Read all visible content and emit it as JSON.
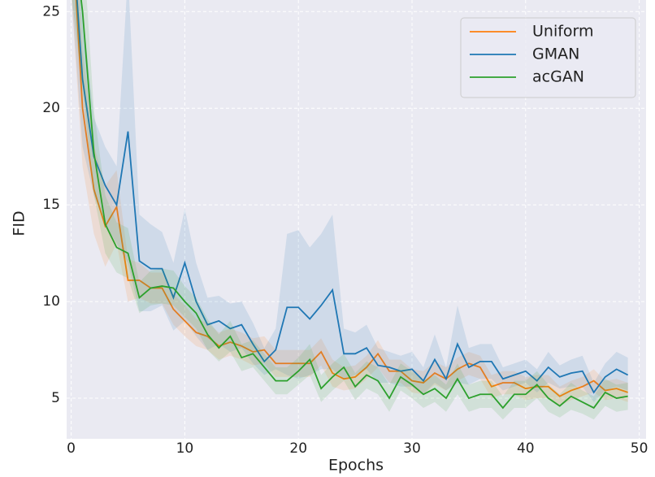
{
  "chart_data": {
    "type": "line",
    "x_label": "Epochs",
    "y_label": "FID",
    "x": [
      0,
      1,
      2,
      3,
      4,
      5,
      6,
      7,
      8,
      9,
      10,
      11,
      12,
      13,
      14,
      15,
      16,
      17,
      18,
      19,
      20,
      21,
      22,
      23,
      24,
      25,
      26,
      27,
      28,
      29,
      30,
      31,
      32,
      33,
      34,
      35,
      36,
      37,
      38,
      39,
      40,
      41,
      42,
      43,
      44,
      45,
      46,
      47,
      48,
      49
    ],
    "xlim": [
      -0.4,
      50.6
    ],
    "xticks": [
      0,
      10,
      20,
      30,
      40,
      50
    ],
    "ylim": [
      2.9,
      25.6
    ],
    "yticks": [
      5,
      10,
      15,
      20,
      25
    ],
    "grid": true,
    "legend": "upper right",
    "series": [
      {
        "name": "Uniform",
        "color": "#ff7f0e",
        "values": [
          30,
          20,
          15.8,
          13.9,
          14.9,
          11.1,
          11.1,
          10.7,
          10.7,
          9.6,
          9.0,
          8.4,
          8.2,
          7.7,
          7.9,
          7.7,
          7.4,
          7.5,
          6.8,
          6.8,
          6.8,
          6.8,
          7.4,
          6.3,
          6.0,
          6.1,
          6.6,
          7.3,
          6.4,
          6.4,
          5.9,
          5.8,
          6.3,
          6.0,
          6.5,
          6.8,
          6.6,
          5.6,
          5.8,
          5.8,
          5.5,
          5.6,
          5.6,
          5.1,
          5.4,
          5.6,
          5.9,
          5.4,
          5.5,
          5.3
        ],
        "lower": [
          26,
          17,
          13.5,
          11.8,
          13,
          10,
          10.2,
          9.9,
          9.9,
          8.8,
          8.2,
          7.7,
          7.5,
          7.0,
          7.2,
          7.0,
          6.7,
          6.8,
          6.1,
          6.1,
          6.1,
          6.1,
          6.7,
          5.6,
          5.4,
          5.5,
          6.0,
          6.6,
          5.8,
          5.8,
          5.3,
          5.2,
          5.7,
          5.4,
          5.9,
          6.2,
          6.0,
          5.0,
          5.2,
          5.2,
          4.9,
          5.0,
          5.0,
          4.6,
          4.9,
          5.1,
          5.3,
          4.9,
          5.0,
          4.8
        ],
        "upper": [
          34,
          23,
          18.1,
          16,
          16.8,
          12.2,
          12,
          11.5,
          11.5,
          10.4,
          9.8,
          9.1,
          8.9,
          8.4,
          8.6,
          8.4,
          8.1,
          8.2,
          7.5,
          7.5,
          7.5,
          7.5,
          8.1,
          7.0,
          6.6,
          6.7,
          7.2,
          8.0,
          7.0,
          7.0,
          6.5,
          6.4,
          6.9,
          6.6,
          7.1,
          7.4,
          7.2,
          6.2,
          6.4,
          6.4,
          6.1,
          6.2,
          6.2,
          5.6,
          5.9,
          6.1,
          6.5,
          5.9,
          6.0,
          5.8
        ]
      },
      {
        "name": "GMAN",
        "color": "#1f77b4",
        "values": [
          30,
          21.5,
          17.5,
          16,
          15,
          18.8,
          12.1,
          11.7,
          11.7,
          10.2,
          12.0,
          10.0,
          8.8,
          9.0,
          8.6,
          8.8,
          7.8,
          6.9,
          7.5,
          9.7,
          9.7,
          9.1,
          9.8,
          10.6,
          7.3,
          7.3,
          7.6,
          6.7,
          6.6,
          6.4,
          6.5,
          5.9,
          7.0,
          6.0,
          7.8,
          6.6,
          6.9,
          6.9,
          6.0,
          6.2,
          6.4,
          5.9,
          6.6,
          6.1,
          6.3,
          6.4,
          5.3,
          6.1,
          6.5,
          6.2
        ],
        "lower": [
          26,
          18,
          15.5,
          14,
          13,
          12,
          9.5,
          9.5,
          9.8,
          8.5,
          9,
          8.2,
          7.5,
          7.8,
          7.4,
          7.6,
          6.8,
          6.2,
          6.5,
          6.2,
          6.0,
          6.2,
          6.5,
          6.5,
          6.0,
          6.2,
          6.5,
          5.8,
          5.8,
          5.6,
          5.6,
          5.2,
          5.8,
          5.4,
          5.8,
          5.7,
          6.0,
          6.0,
          5.4,
          5.6,
          5.8,
          5.3,
          5.8,
          5.5,
          5.6,
          5.6,
          4.8,
          5.4,
          5.6,
          5.4
        ],
        "upper": [
          34,
          25,
          19.5,
          18,
          17,
          27,
          14.5,
          14,
          13.6,
          12,
          14.8,
          12,
          10.2,
          10.3,
          9.9,
          10,
          8.9,
          7.6,
          8.6,
          13.5,
          13.7,
          12.8,
          13.5,
          14.5,
          8.6,
          8.4,
          8.8,
          7.6,
          7.4,
          7.2,
          7.4,
          6.6,
          8.3,
          6.6,
          9.8,
          7.6,
          7.8,
          7.8,
          6.6,
          6.8,
          7.0,
          6.5,
          7.4,
          6.7,
          7.0,
          7.2,
          5.8,
          6.8,
          7.4,
          7.1
        ]
      },
      {
        "name": "acGAN",
        "color": "#2ca02c",
        "values": [
          30,
          25,
          17.7,
          14.0,
          12.8,
          12.5,
          10.2,
          10.7,
          10.8,
          10.7,
          10.0,
          9.4,
          8.3,
          7.6,
          8.2,
          7.1,
          7.3,
          6.6,
          5.9,
          5.9,
          6.4,
          7.0,
          5.5,
          6.1,
          6.6,
          5.6,
          6.2,
          5.9,
          5.0,
          6.1,
          5.7,
          5.2,
          5.5,
          5.0,
          6.0,
          5.0,
          5.2,
          5.2,
          4.5,
          5.2,
          5.2,
          5.7,
          5.0,
          4.6,
          5.1,
          4.8,
          4.5,
          5.3,
          5.0,
          5.1
        ],
        "lower": [
          26,
          21,
          15.5,
          12.5,
          11.5,
          11.2,
          9.4,
          9.8,
          9.9,
          9.8,
          9.2,
          8.6,
          7.5,
          6.9,
          7.4,
          6.4,
          6.6,
          5.9,
          5.2,
          5.2,
          5.7,
          6.2,
          4.8,
          5.4,
          5.9,
          4.9,
          5.5,
          5.2,
          4.3,
          5.4,
          5.0,
          4.5,
          4.8,
          4.3,
          5.2,
          4.3,
          4.5,
          4.5,
          3.9,
          4.5,
          4.5,
          5.0,
          4.3,
          4.0,
          4.4,
          4.2,
          3.9,
          4.6,
          4.3,
          4.4
        ],
        "upper": [
          34,
          29,
          19.9,
          15.5,
          14.1,
          13.8,
          11,
          11.6,
          11.7,
          11.6,
          10.8,
          10.2,
          9.1,
          8.3,
          9.0,
          7.8,
          8.0,
          7.3,
          6.6,
          6.6,
          7.1,
          7.8,
          6.2,
          6.8,
          7.3,
          6.3,
          6.9,
          6.6,
          5.7,
          6.8,
          6.4,
          5.9,
          6.2,
          5.7,
          6.8,
          5.7,
          5.9,
          5.9,
          5.1,
          5.9,
          5.9,
          6.4,
          5.7,
          5.2,
          5.8,
          5.4,
          5.1,
          6.0,
          5.7,
          5.8
        ]
      }
    ]
  }
}
